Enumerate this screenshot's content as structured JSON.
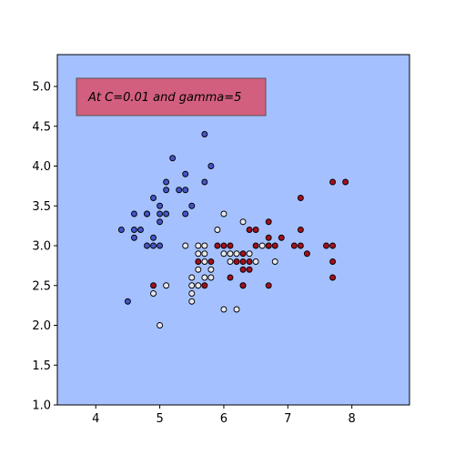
{
  "chart_data": {
    "type": "scatter",
    "title": "",
    "xlabel": "",
    "ylabel": "",
    "xlim": [
      3.4,
      8.9
    ],
    "ylim": [
      1.0,
      5.4
    ],
    "x_ticks": [
      4,
      5,
      6,
      7,
      8
    ],
    "y_ticks": [
      1.0,
      1.5,
      2.0,
      2.5,
      3.0,
      3.5,
      4.0,
      4.5,
      5.0
    ],
    "grid": false,
    "background_color": "#a5c0fe",
    "annotation": {
      "text": "At C=0.01 and gamma=5",
      "box_color": "#d35f7e",
      "position": "top-left"
    },
    "series": [
      {
        "color": "#4455c8",
        "points": [
          [
            4.4,
            3.2
          ],
          [
            4.5,
            2.3
          ],
          [
            4.6,
            3.1
          ],
          [
            4.6,
            3.2
          ],
          [
            4.6,
            3.4
          ],
          [
            4.7,
            3.2
          ],
          [
            4.8,
            3.0
          ],
          [
            4.8,
            3.4
          ],
          [
            4.8,
            3.4
          ],
          [
            4.9,
            3.0
          ],
          [
            4.9,
            3.1
          ],
          [
            4.9,
            3.6
          ],
          [
            5.0,
            3.0
          ],
          [
            5.0,
            3.3
          ],
          [
            5.0,
            3.4
          ],
          [
            5.0,
            3.5
          ],
          [
            5.1,
            3.4
          ],
          [
            5.1,
            3.7
          ],
          [
            5.1,
            3.8
          ],
          [
            5.2,
            4.1
          ],
          [
            5.3,
            3.7
          ],
          [
            5.4,
            3.4
          ],
          [
            5.4,
            3.7
          ],
          [
            5.4,
            3.9
          ],
          [
            5.5,
            3.5
          ],
          [
            5.7,
            3.8
          ],
          [
            5.7,
            4.4
          ],
          [
            5.8,
            4.0
          ]
        ]
      },
      {
        "color": "#e6e8ee",
        "points": [
          [
            4.9,
            2.4
          ],
          [
            5.0,
            2.0
          ],
          [
            5.1,
            2.5
          ],
          [
            5.4,
            3.0
          ],
          [
            5.5,
            2.3
          ],
          [
            5.5,
            2.4
          ],
          [
            5.5,
            2.5
          ],
          [
            5.5,
            2.6
          ],
          [
            5.6,
            2.5
          ],
          [
            5.6,
            2.7
          ],
          [
            5.6,
            2.9
          ],
          [
            5.6,
            3.0
          ],
          [
            5.7,
            2.6
          ],
          [
            5.7,
            2.8
          ],
          [
            5.7,
            2.9
          ],
          [
            5.7,
            3.0
          ],
          [
            5.8,
            2.6
          ],
          [
            5.8,
            2.7
          ],
          [
            5.9,
            3.2
          ],
          [
            6.0,
            2.2
          ],
          [
            6.0,
            2.9
          ],
          [
            6.0,
            3.4
          ],
          [
            6.1,
            2.8
          ],
          [
            6.1,
            2.9
          ],
          [
            6.2,
            2.2
          ],
          [
            6.2,
            2.9
          ],
          [
            6.3,
            2.5
          ],
          [
            6.3,
            3.3
          ],
          [
            6.4,
            2.9
          ],
          [
            6.5,
            2.8
          ],
          [
            6.6,
            3.0
          ],
          [
            6.7,
            3.0
          ],
          [
            6.8,
            2.8
          ]
        ]
      },
      {
        "color": "#a50f1e",
        "points": [
          [
            4.9,
            2.5
          ],
          [
            5.6,
            2.8
          ],
          [
            5.7,
            2.5
          ],
          [
            5.8,
            2.8
          ],
          [
            5.9,
            3.0
          ],
          [
            6.0,
            3.0
          ],
          [
            6.1,
            2.6
          ],
          [
            6.1,
            3.0
          ],
          [
            6.2,
            2.8
          ],
          [
            6.3,
            2.5
          ],
          [
            6.3,
            2.7
          ],
          [
            6.3,
            2.8
          ],
          [
            6.3,
            2.9
          ],
          [
            6.4,
            2.7
          ],
          [
            6.4,
            2.8
          ],
          [
            6.4,
            3.2
          ],
          [
            6.5,
            3.0
          ],
          [
            6.5,
            3.2
          ],
          [
            6.7,
            2.5
          ],
          [
            6.7,
            3.0
          ],
          [
            6.7,
            3.1
          ],
          [
            6.7,
            3.3
          ],
          [
            6.8,
            3.0
          ],
          [
            6.9,
            3.1
          ],
          [
            7.1,
            3.0
          ],
          [
            7.2,
            3.0
          ],
          [
            7.2,
            3.2
          ],
          [
            7.2,
            3.6
          ],
          [
            7.3,
            2.9
          ],
          [
            7.6,
            3.0
          ],
          [
            7.7,
            2.6
          ],
          [
            7.7,
            2.8
          ],
          [
            7.7,
            3.0
          ],
          [
            7.7,
            3.8
          ],
          [
            7.9,
            3.8
          ]
        ]
      }
    ]
  }
}
